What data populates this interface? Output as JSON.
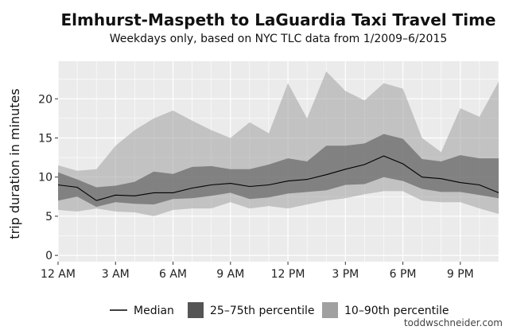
{
  "credit": "toddwschneider.com",
  "colors": {
    "panel": "#ebebeb",
    "grid": "#ffffff",
    "band_outer": "#a0a0a0",
    "band_inner": "#555555",
    "median_line": "#000000"
  },
  "chart_data": {
    "type": "area",
    "title": "Elmhurst-Maspeth to LaGuardia Taxi Travel Time",
    "subtitle": "Weekdays only, based on NYC TLC data from 1/2009–6/2015",
    "xlabel": "",
    "ylabel": "trip duration in minutes",
    "x": [
      0,
      1,
      2,
      3,
      4,
      5,
      6,
      7,
      8,
      9,
      10,
      11,
      12,
      13,
      14,
      15,
      16,
      17,
      18,
      19,
      20,
      21,
      22,
      23
    ],
    "xlim": [
      0,
      23
    ],
    "ylim": [
      -0.8,
      24.8
    ],
    "x_ticks": [
      {
        "value": 0,
        "label": "12 AM"
      },
      {
        "value": 3,
        "label": "3 AM"
      },
      {
        "value": 6,
        "label": "6 AM"
      },
      {
        "value": 9,
        "label": "9 AM"
      },
      {
        "value": 12,
        "label": "12 PM"
      },
      {
        "value": 15,
        "label": "3 PM"
      },
      {
        "value": 18,
        "label": "6 PM"
      },
      {
        "value": 21,
        "label": "9 PM"
      }
    ],
    "y_ticks": [
      0,
      5,
      10,
      15,
      20
    ],
    "grid": true,
    "legend_position": "bottom",
    "series": [
      {
        "name": "Median",
        "kind": "line",
        "values": [
          9.0,
          8.7,
          7.0,
          7.7,
          7.6,
          8.0,
          8.0,
          8.6,
          9.0,
          9.2,
          8.8,
          9.0,
          9.5,
          9.7,
          10.3,
          11.0,
          11.6,
          12.7,
          11.7,
          10.0,
          9.8,
          9.3,
          9.0,
          8.0
        ]
      },
      {
        "name": "25–75th percentile",
        "kind": "band",
        "low": [
          7.0,
          7.5,
          6.2,
          6.8,
          6.6,
          6.5,
          7.2,
          7.3,
          7.6,
          8.0,
          7.2,
          7.4,
          7.9,
          8.1,
          8.3,
          9.0,
          9.1,
          10.0,
          9.5,
          8.5,
          8.1,
          8.1,
          7.7,
          7.3
        ],
        "high": [
          10.6,
          9.7,
          8.7,
          8.9,
          9.4,
          10.7,
          10.4,
          11.3,
          11.4,
          11.0,
          11.0,
          11.6,
          12.4,
          12.0,
          14.0,
          14.0,
          14.3,
          15.5,
          14.9,
          12.3,
          12.0,
          12.8,
          12.4,
          12.4
        ]
      },
      {
        "name": "10–90th percentile",
        "kind": "band",
        "low": [
          5.8,
          5.6,
          6.0,
          5.6,
          5.5,
          5.0,
          5.8,
          6.0,
          6.0,
          6.8,
          6.0,
          6.3,
          6.0,
          6.5,
          7.0,
          7.3,
          7.8,
          8.2,
          8.2,
          7.0,
          6.8,
          6.8,
          6.0,
          5.3
        ],
        "high": [
          11.5,
          10.8,
          11.0,
          14.0,
          16.0,
          17.5,
          18.5,
          17.2,
          16.0,
          15.0,
          17.0,
          15.6,
          22.0,
          17.5,
          23.5,
          21.0,
          19.8,
          22.0,
          21.3,
          15.0,
          13.2,
          18.8,
          17.7,
          22.2
        ]
      }
    ]
  }
}
